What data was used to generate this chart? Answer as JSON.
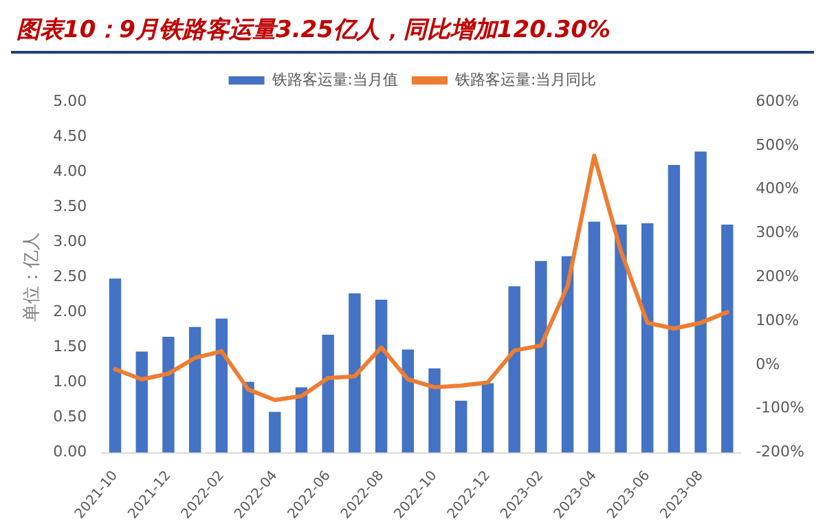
{
  "chart_data": {
    "type": "bar",
    "title": "图表10：9月铁路客运量3.25亿人，同比增加120.30%",
    "ylabel": "单位：亿人",
    "categories": [
      "2021-10",
      null,
      "2021-12",
      null,
      "2022-02",
      null,
      "2022-04",
      null,
      "2022-06",
      null,
      "2022-08",
      null,
      "2022-10",
      null,
      "2022-12",
      null,
      "2023-02",
      null,
      "2023-04",
      null,
      "2023-06",
      null,
      "2023-08",
      null
    ],
    "series": [
      {
        "name": "铁路客运量:当月值",
        "color": "#4472c4",
        "values": [
          2.48,
          1.44,
          1.65,
          1.79,
          1.91,
          1.01,
          0.58,
          0.93,
          1.68,
          2.27,
          2.18,
          1.47,
          1.2,
          0.74,
          0.99,
          2.37,
          2.73,
          2.8,
          3.29,
          3.25,
          3.27,
          4.1,
          4.29,
          3.25
        ]
      },
      {
        "name": "铁路客运量:当月同比",
        "type": "line",
        "axis": "y2",
        "color": "#ed7d31",
        "values": [
          -10,
          -33,
          -20,
          16,
          31,
          -56,
          -80,
          -71,
          -30,
          -26,
          40,
          -33,
          -51,
          -47,
          -40,
          33,
          44,
          180,
          477,
          260,
          96,
          83,
          96,
          120.3
        ]
      }
    ],
    "ylim": [
      0,
      5
    ],
    "yticks": [
      {
        "value": 0,
        "label": "0.00"
      },
      {
        "value": 0.5,
        "label": "0.50"
      },
      {
        "value": 1,
        "label": "1.00"
      },
      {
        "value": 1.5,
        "label": "1.50"
      },
      {
        "value": 2,
        "label": "2.00"
      },
      {
        "value": 2.5,
        "label": "2.50"
      },
      {
        "value": 3,
        "label": "3.00"
      },
      {
        "value": 3.5,
        "label": "3.50"
      },
      {
        "value": 4,
        "label": "4.00"
      },
      {
        "value": 4.5,
        "label": "4.50"
      },
      {
        "value": 5,
        "label": "5.00"
      }
    ],
    "y2lim": [
      -200,
      600
    ],
    "y2ticks": [
      {
        "value": -200,
        "label": "-200%"
      },
      {
        "value": -100,
        "label": "-100%"
      },
      {
        "value": 0,
        "label": "0%"
      },
      {
        "value": 100,
        "label": "100%"
      },
      {
        "value": 200,
        "label": "200%"
      },
      {
        "value": 300,
        "label": "300%"
      },
      {
        "value": 400,
        "label": "400%"
      },
      {
        "value": 500,
        "label": "500%"
      },
      {
        "value": 600,
        "label": "600%"
      }
    ],
    "grid": false,
    "legend": "top",
    "marker": "none",
    "line_style": "solid"
  }
}
